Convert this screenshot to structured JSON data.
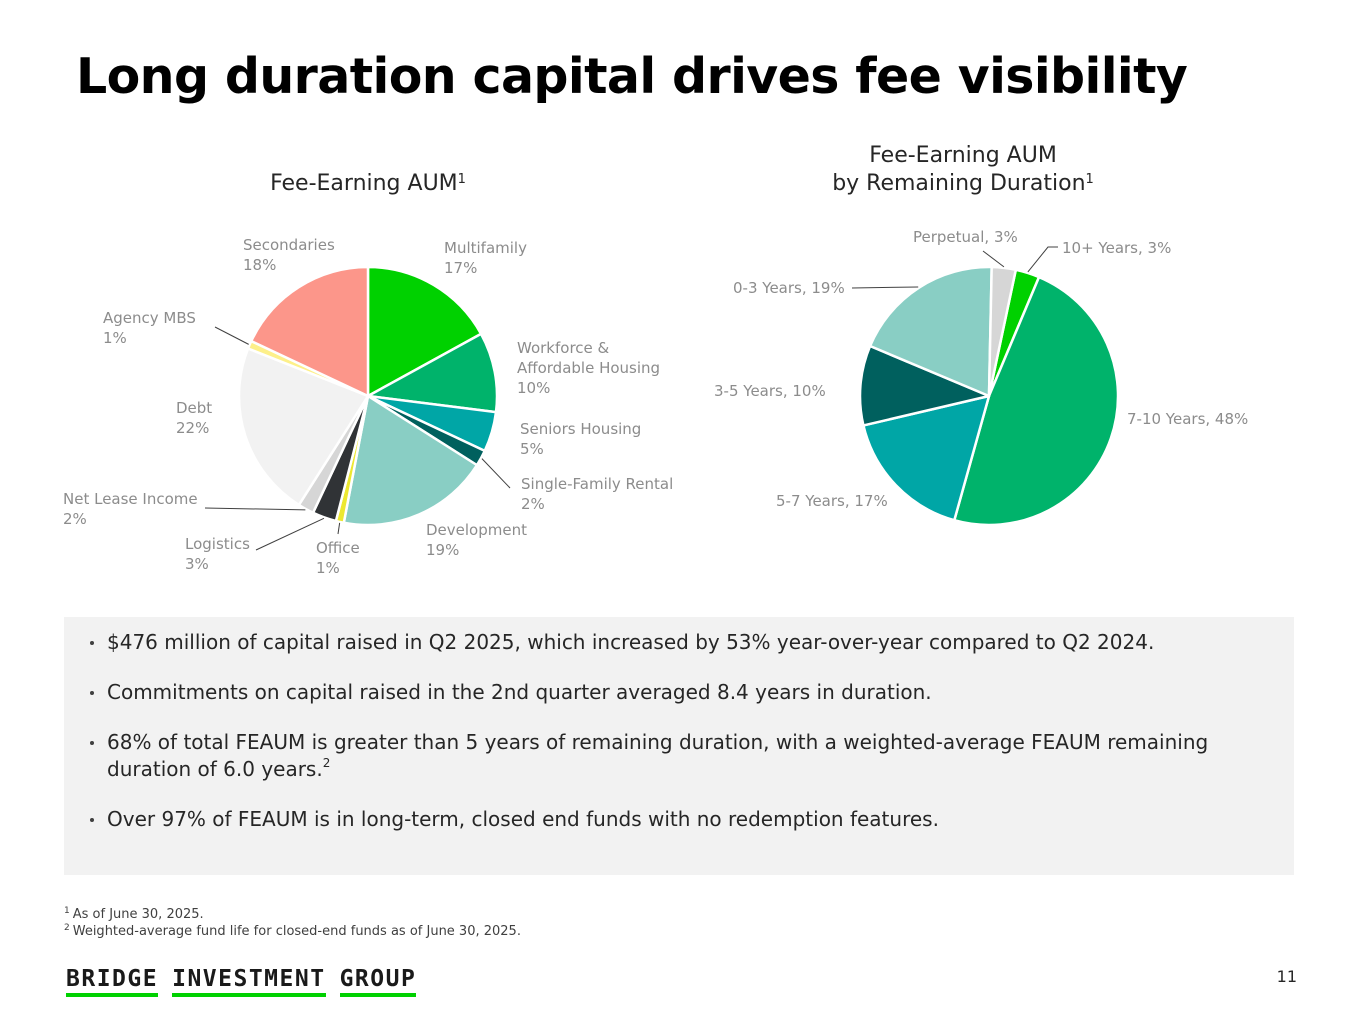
{
  "page": {
    "title": "Long duration capital drives fee visibility",
    "page_number": "11"
  },
  "chart_data": [
    {
      "type": "pie",
      "title": "Fee-Earning AUM",
      "title_line1": "",
      "title_line2": "Fee-Earning AUM",
      "title_superscript": "1",
      "start_angle_deg": 0,
      "slices": [
        {
          "label": "Multifamily",
          "value": 17,
          "display": "17%",
          "color": "#00d100"
        },
        {
          "label": "Workforce & Affordable Housing",
          "label_lines": [
            "Workforce &",
            "Affordable Housing"
          ],
          "value": 10,
          "display": "10%",
          "color": "#00b36b"
        },
        {
          "label": "Seniors Housing",
          "value": 5,
          "display": "5%",
          "color": "#00a6a6"
        },
        {
          "label": "Single-Family Rental",
          "value": 2,
          "display": "2%",
          "color": "#00605e"
        },
        {
          "label": "Development",
          "value": 19,
          "display": "19%",
          "color": "#89cec4"
        },
        {
          "label": "Office",
          "value": 1,
          "display": "1%",
          "color": "#ece830"
        },
        {
          "label": "Logistics",
          "value": 3,
          "display": "3%",
          "color": "#303336"
        },
        {
          "label": "Net Lease Income",
          "value": 2,
          "display": "2%",
          "color": "#d6d6d6"
        },
        {
          "label": "Debt",
          "value": 22,
          "display": "22%",
          "color": "#f2f2f2"
        },
        {
          "label": "Agency MBS",
          "value": 1,
          "display": "1%",
          "color": "#fdf08a"
        },
        {
          "label": "Secondaries",
          "value": 18,
          "display": "18%",
          "color": "#fc968a"
        }
      ]
    },
    {
      "type": "pie",
      "title": "Fee-Earning AUM by Remaining Duration",
      "title_line1": "Fee-Earning AUM",
      "title_line2": "by Remaining Duration",
      "title_superscript": "1",
      "start_angle_deg": 12,
      "slices": [
        {
          "label": "10+ Years",
          "value": 3,
          "display": "10+ Years, 3%",
          "color": "#00d100"
        },
        {
          "label": "7-10 Years",
          "value": 48,
          "display": "7-10 Years, 48%",
          "color": "#00b36b"
        },
        {
          "label": "5-7 Years",
          "value": 17,
          "display": "5-7 Years, 17%",
          "color": "#00a6a6"
        },
        {
          "label": "3-5 Years",
          "value": 10,
          "display": "3-5 Years, 10%",
          "color": "#00605e"
        },
        {
          "label": "0-3 Years",
          "value": 19,
          "display": "0-3 Years, 19%",
          "color": "#89cec4"
        },
        {
          "label": "Perpetual",
          "value": 3,
          "display": "Perpetual, 3%",
          "color": "#d6d6d6"
        }
      ]
    }
  ],
  "bullets": [
    {
      "text": "$476 million of capital raised in Q2 2025, which increased by 53% year-over-year compared to Q2 2024.",
      "sup": ""
    },
    {
      "text": "Commitments on capital raised in the 2nd quarter averaged 8.4 years in duration.",
      "sup": ""
    },
    {
      "text": "68% of total FEAUM is greater than 5 years of remaining duration, with a weighted-average FEAUM remaining duration of 6.0 years.",
      "sup": "2"
    },
    {
      "text": "Over 97% of FEAUM is in long-term, closed end funds with no redemption features.",
      "sup": ""
    }
  ],
  "footnotes": [
    {
      "mark": "1",
      "text": "As of June 30, 2025."
    },
    {
      "mark": "2",
      "text": "Weighted-average fund life for closed-end funds as of June 30, 2025."
    }
  ],
  "logo": {
    "words": [
      "BRIDGE",
      "INVESTMENT",
      "GROUP"
    ],
    "accent_color": "#00d100"
  }
}
